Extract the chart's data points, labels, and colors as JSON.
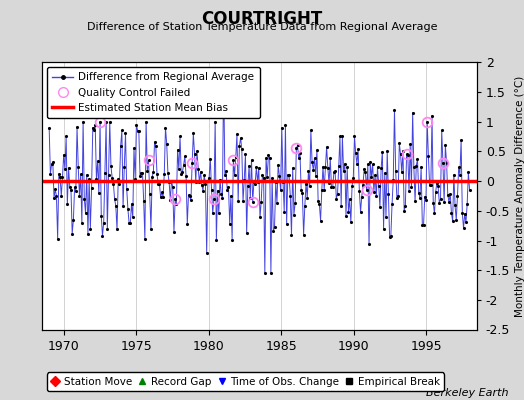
{
  "title": "COURTRIGHT",
  "subtitle": "Difference of Station Temperature Data from Regional Average",
  "ylabel": "Monthly Temperature Anomaly Difference (°C)",
  "credit": "Berkeley Earth",
  "xlim": [
    1968.5,
    1998.5
  ],
  "ylim": [
    -2.5,
    2.0
  ],
  "yticks": [
    -2.0,
    -1.5,
    -1.0,
    -0.5,
    0.0,
    0.5,
    1.0,
    1.5,
    2.0
  ],
  "ytick_labels": [
    "-2",
    "-1.5",
    "-1",
    "-0.5",
    "0",
    "0.5",
    "1",
    "1.5",
    "2"
  ],
  "xticks": [
    1970,
    1975,
    1980,
    1985,
    1990,
    1995
  ],
  "bias": 0.0,
  "background_color": "#d8d8d8",
  "plot_background": "#ffffff",
  "grid_color": "#cccccc",
  "line_color": "#4444dd",
  "bias_color": "red",
  "qc_color": "#ff88ee",
  "seed": 42,
  "n_months": 348,
  "start_year": 1969.0,
  "end_year": 1998.0
}
